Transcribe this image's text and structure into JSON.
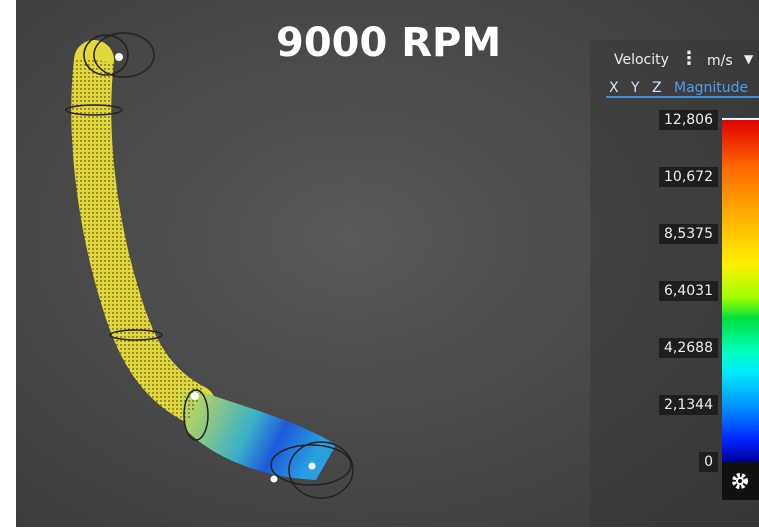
{
  "header": {
    "title": "9000 RPM"
  },
  "panel": {
    "quantity": "Velocity",
    "unit": "m/s",
    "components": [
      "X",
      "Y",
      "Z",
      "Magnitude"
    ]
  },
  "legend": {
    "labels": [
      "12,806",
      "10,672",
      "8,5375",
      "6,4031",
      "4,2688",
      "2,1344",
      "0"
    ]
  }
}
